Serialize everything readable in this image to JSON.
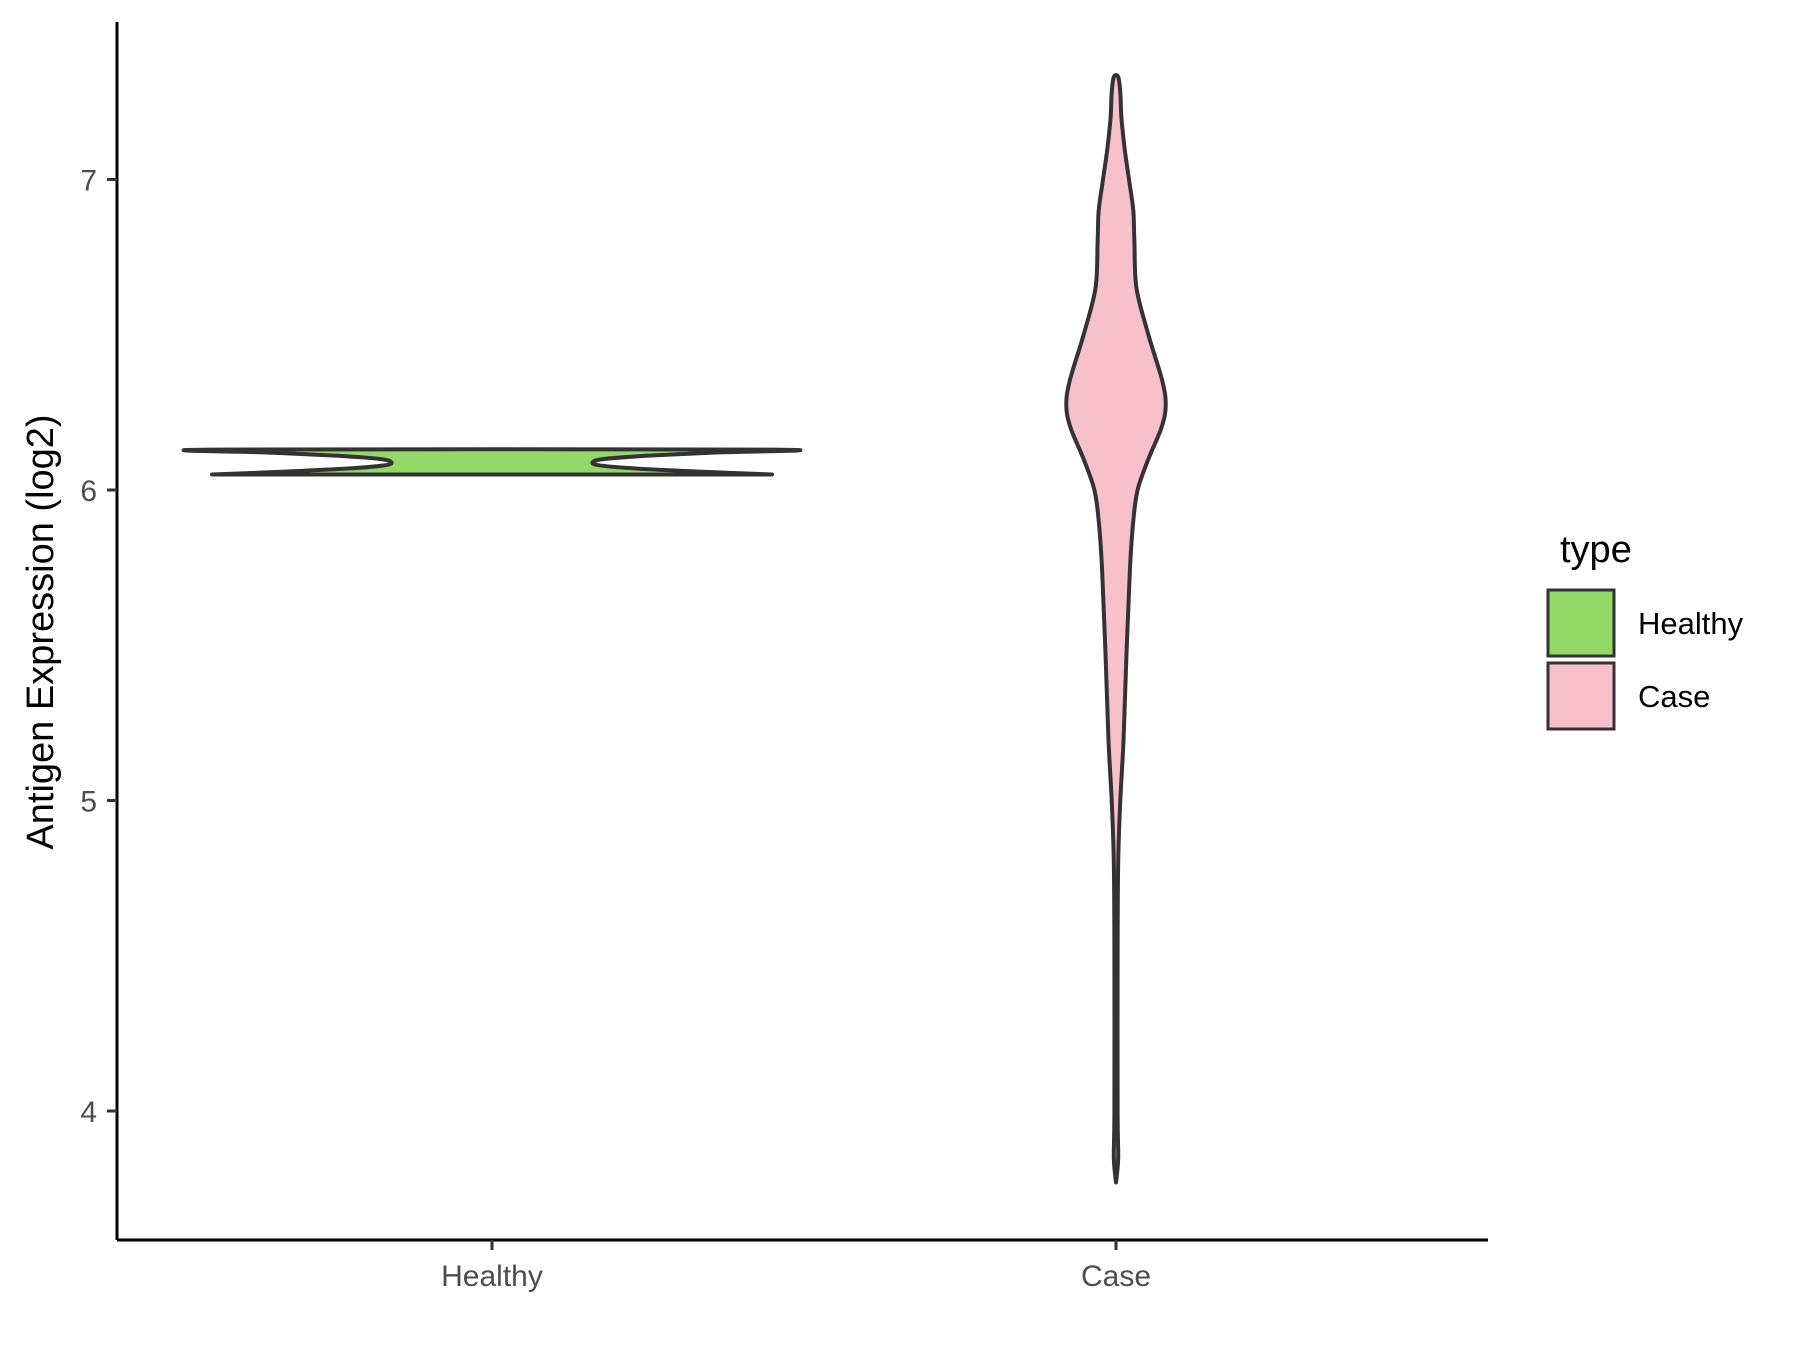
{
  "chart_data": {
    "type": "violin",
    "title": "",
    "xlabel": "",
    "ylabel": "Antigen Expression (log2)",
    "ylim": [
      3.6,
      7.5
    ],
    "yticks": [
      4,
      5,
      6,
      7
    ],
    "categories": [
      "Healthy",
      "Case"
    ],
    "grid": false,
    "legend": {
      "title": "type",
      "placement": "right",
      "entries": [
        {
          "label": "Healthy",
          "color": "#93d967"
        },
        {
          "label": "Case",
          "color": "#f8c0cb"
        }
      ]
    },
    "series": [
      {
        "category": "Healthy",
        "color": "#93d967",
        "ymin": 6.05,
        "ymax": 6.13,
        "density": [
          [
            6.05,
            1.0
          ],
          [
            6.06,
            0.72
          ],
          [
            6.07,
            0.5
          ],
          [
            6.08,
            0.38
          ],
          [
            6.09,
            0.36
          ],
          [
            6.1,
            0.4
          ],
          [
            6.11,
            0.55
          ],
          [
            6.12,
            0.78
          ],
          [
            6.13,
            1.0
          ]
        ]
      },
      {
        "category": "Case",
        "color": "#f8c0cb",
        "ymin": 3.77,
        "ymax": 7.33,
        "density": [
          [
            3.77,
            0.0
          ],
          [
            3.85,
            0.02
          ],
          [
            4.0,
            0.015
          ],
          [
            4.5,
            0.015
          ],
          [
            4.8,
            0.02
          ],
          [
            5.0,
            0.04
          ],
          [
            5.2,
            0.07
          ],
          [
            5.5,
            0.1
          ],
          [
            5.75,
            0.13
          ],
          [
            5.9,
            0.16
          ],
          [
            6.0,
            0.2
          ],
          [
            6.1,
            0.3
          ],
          [
            6.2,
            0.42
          ],
          [
            6.27,
            0.46
          ],
          [
            6.35,
            0.43
          ],
          [
            6.5,
            0.3
          ],
          [
            6.65,
            0.19
          ],
          [
            6.8,
            0.17
          ],
          [
            6.9,
            0.16
          ],
          [
            7.0,
            0.12
          ],
          [
            7.1,
            0.08
          ],
          [
            7.2,
            0.05
          ],
          [
            7.28,
            0.04
          ],
          [
            7.33,
            0.02
          ]
        ]
      }
    ]
  }
}
